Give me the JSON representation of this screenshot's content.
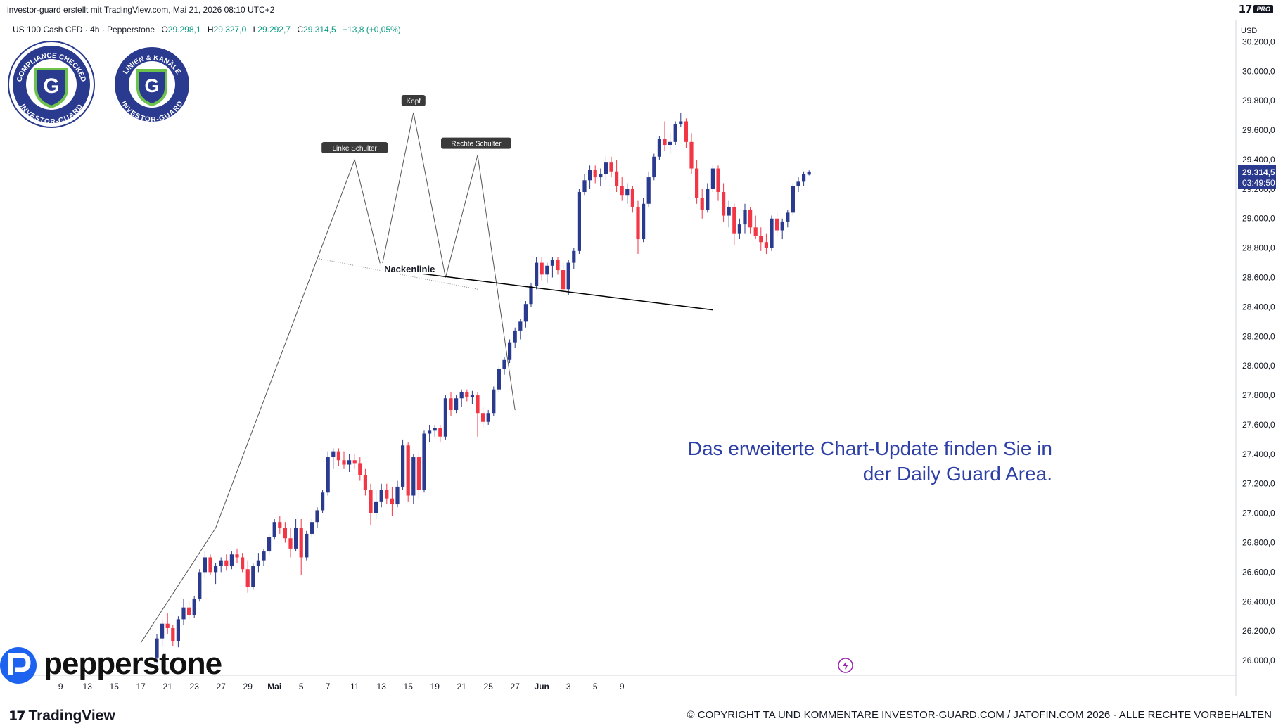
{
  "header": {
    "byline": "investor-guard erstellt mit TradingView.com, Mai 21, 2026 08:10 UTC+2",
    "tv_logo": "17",
    "tv_badge": "PRO"
  },
  "legend": {
    "symbol": "US 100 Cash CFD · 4h · Pepperstone",
    "open_label": "O",
    "open": "29.298,1",
    "high_label": "H",
    "high": "29.327,0",
    "low_label": "L",
    "low": "29.292,7",
    "close_label": "C",
    "close": "29.314,5",
    "change": "+13,8 (+0,05%)"
  },
  "badges": {
    "left_text": "COMPLIANCE CHECKED",
    "left_bottom": "INVESTOR-GUARD",
    "right_text": "LINIEN & KANÄLE",
    "right_bottom": "INVESTOR-GUARD",
    "letter": "G",
    "colors": {
      "ring": "#2a3a8e",
      "shield": "#6cc24a"
    }
  },
  "price_axis": {
    "currency": "USD",
    "last_price": "29.314,5",
    "countdown": "03:49:50"
  },
  "annotations": {
    "left_shoulder": "Linke Schulter",
    "head": "Kopf",
    "right_shoulder": "Rechte Schulter",
    "neckline": "Nackenlinie",
    "note_line1": "Das erweiterte Chart-Update finden Sie in",
    "note_line2": "der Daily Guard Area."
  },
  "branding": {
    "pepperstone": "pepperstone",
    "tradingview": "TradingView",
    "copyright": "© COPYRIGHT TA UND KOMMENTARE INVESTOR-GUARD.COM / JATOFIN.COM 2026 - ALLE RECHTE VORBEHALTEN"
  },
  "chart_data": {
    "type": "candlestick",
    "title": "US 100 Cash CFD · 4h · Pepperstone",
    "xlabel": "",
    "ylabel": "",
    "ylim": [
      25900,
      30350
    ],
    "y_ticks": [
      "30.200,0",
      "30.000,0",
      "29.800,0",
      "29.600,0",
      "29.400,0",
      "29.200,0",
      "29.000,0",
      "28.800,0",
      "28.600,0",
      "28.400,0",
      "28.200,0",
      "28.000,0",
      "27.800,0",
      "27.600,0",
      "27.400,0",
      "27.200,0",
      "27.000,0",
      "26.800,0",
      "26.600,0",
      "26.400,0",
      "26.200,0",
      "26.000,0"
    ],
    "y_tick_values": [
      30200,
      30000,
      29800,
      29600,
      29400,
      29200,
      29000,
      28800,
      28600,
      28400,
      28200,
      28000,
      27800,
      27600,
      27400,
      27200,
      27000,
      26800,
      26600,
      26400,
      26200,
      26000
    ],
    "x_ticks": [
      "9",
      "13",
      "15",
      "17",
      "21",
      "23",
      "27",
      "29",
      "Mai",
      "5",
      "7",
      "11",
      "13",
      "15",
      "19",
      "21",
      "25",
      "27",
      "Jun",
      "3",
      "5",
      "9"
    ],
    "x_tick_index": [
      -18,
      -13,
      -8,
      -3,
      2,
      7,
      12,
      17,
      22,
      27,
      32,
      37,
      42,
      47,
      52,
      57,
      62,
      67,
      72,
      77,
      82,
      87
    ],
    "colors": {
      "up": "#2a3a8e",
      "down": "#f23645",
      "projection": "#555555",
      "neckline": "#000000"
    },
    "candles": [
      [
        26020,
        26180,
        25980,
        26150
      ],
      [
        26150,
        26280,
        26100,
        26250
      ],
      [
        26250,
        26320,
        26180,
        26220
      ],
      [
        26220,
        26240,
        26100,
        26130
      ],
      [
        26130,
        26300,
        26090,
        26280
      ],
      [
        26280,
        26420,
        26240,
        26360
      ],
      [
        26360,
        26400,
        26280,
        26310
      ],
      [
        26310,
        26440,
        26290,
        26420
      ],
      [
        26420,
        26620,
        26400,
        26600
      ],
      [
        26600,
        26740,
        26560,
        26700
      ],
      [
        26700,
        26720,
        26580,
        26600
      ],
      [
        26600,
        26660,
        26520,
        26640
      ],
      [
        26640,
        26700,
        26600,
        26680
      ],
      [
        26680,
        26720,
        26610,
        26640
      ],
      [
        26640,
        26740,
        26620,
        26720
      ],
      [
        26720,
        26760,
        26660,
        26700
      ],
      [
        26700,
        26730,
        26600,
        26620
      ],
      [
        26620,
        26680,
        26460,
        26500
      ],
      [
        26500,
        26660,
        26480,
        26640
      ],
      [
        26640,
        26730,
        26600,
        26680
      ],
      [
        26680,
        26760,
        26640,
        26740
      ],
      [
        26740,
        26860,
        26720,
        26840
      ],
      [
        26840,
        26960,
        26820,
        26940
      ],
      [
        26940,
        26980,
        26860,
        26900
      ],
      [
        26900,
        26940,
        26800,
        26830
      ],
      [
        26830,
        26900,
        26700,
        26760
      ],
      [
        26760,
        26960,
        26740,
        26900
      ],
      [
        26900,
        26960,
        26580,
        26700
      ],
      [
        26700,
        26880,
        26680,
        26860
      ],
      [
        26860,
        26960,
        26840,
        26940
      ],
      [
        26940,
        27040,
        26900,
        27020
      ],
      [
        27020,
        27160,
        27000,
        27140
      ],
      [
        27140,
        27420,
        27120,
        27380
      ],
      [
        27380,
        27440,
        27300,
        27420
      ],
      [
        27420,
        27440,
        27320,
        27360
      ],
      [
        27360,
        27420,
        27300,
        27330
      ],
      [
        27330,
        27400,
        27280,
        27360
      ],
      [
        27360,
        27400,
        27300,
        27340
      ],
      [
        27340,
        27380,
        27220,
        27260
      ],
      [
        27260,
        27300,
        27120,
        27160
      ],
      [
        27160,
        27200,
        26920,
        27000
      ],
      [
        27000,
        27160,
        26960,
        27080
      ],
      [
        27080,
        27200,
        27040,
        27160
      ],
      [
        27160,
        27200,
        27060,
        27100
      ],
      [
        27100,
        27180,
        26980,
        27060
      ],
      [
        27060,
        27220,
        27040,
        27180
      ],
      [
        27180,
        27500,
        27160,
        27460
      ],
      [
        27460,
        27480,
        27080,
        27120
      ],
      [
        27120,
        27400,
        27060,
        27380
      ],
      [
        27380,
        27420,
        27100,
        27160
      ],
      [
        27160,
        27560,
        27140,
        27540
      ],
      [
        27540,
        27600,
        27480,
        27560
      ],
      [
        27560,
        27600,
        27520,
        27580
      ],
      [
        27580,
        27600,
        27480,
        27520
      ],
      [
        27520,
        27800,
        27500,
        27780
      ],
      [
        27780,
        27820,
        27660,
        27700
      ],
      [
        27700,
        27800,
        27680,
        27780
      ],
      [
        27780,
        27840,
        27720,
        27820
      ],
      [
        27820,
        27840,
        27760,
        27790
      ],
      [
        27790,
        27830,
        27740,
        27800
      ],
      [
        27800,
        27820,
        27520,
        27680
      ],
      [
        27680,
        27720,
        27580,
        27620
      ],
      [
        27620,
        27700,
        27600,
        27680
      ],
      [
        27680,
        27860,
        27660,
        27840
      ],
      [
        27840,
        28000,
        27820,
        27980
      ],
      [
        27980,
        28060,
        27940,
        28040
      ],
      [
        28040,
        28180,
        28020,
        28160
      ],
      [
        28160,
        28260,
        28120,
        28240
      ],
      [
        28240,
        28320,
        28180,
        28300
      ],
      [
        28300,
        28440,
        28260,
        28420
      ],
      [
        28420,
        28560,
        28400,
        28540
      ],
      [
        28540,
        28740,
        28520,
        28700
      ],
      [
        28700,
        28740,
        28580,
        28620
      ],
      [
        28620,
        28700,
        28560,
        28680
      ],
      [
        28680,
        28740,
        28600,
        28720
      ],
      [
        28720,
        28740,
        28620,
        28650
      ],
      [
        28650,
        28700,
        28480,
        28520
      ],
      [
        28520,
        28720,
        28480,
        28700
      ],
      [
        28700,
        28800,
        28660,
        28780
      ],
      [
        28780,
        29200,
        28760,
        29180
      ],
      [
        29180,
        29300,
        29160,
        29260
      ],
      [
        29260,
        29360,
        29200,
        29330
      ],
      [
        29330,
        29360,
        29240,
        29280
      ],
      [
        29280,
        29340,
        29220,
        29300
      ],
      [
        29300,
        29420,
        29260,
        29380
      ],
      [
        29380,
        29420,
        29280,
        29320
      ],
      [
        29320,
        29400,
        29180,
        29220
      ],
      [
        29220,
        29280,
        29120,
        29160
      ],
      [
        29160,
        29240,
        29100,
        29200
      ],
      [
        29200,
        29220,
        29040,
        29080
      ],
      [
        29080,
        29120,
        28760,
        28860
      ],
      [
        28860,
        29140,
        28840,
        29100
      ],
      [
        29100,
        29320,
        29080,
        29280
      ],
      [
        29280,
        29440,
        29260,
        29420
      ],
      [
        29420,
        29560,
        29400,
        29540
      ],
      [
        29540,
        29660,
        29460,
        29500
      ],
      [
        29500,
        29580,
        29440,
        29520
      ],
      [
        29520,
        29660,
        29500,
        29640
      ],
      [
        29640,
        29720,
        29620,
        29660
      ],
      [
        29660,
        29680,
        29480,
        29520
      ],
      [
        29520,
        29580,
        29300,
        29340
      ],
      [
        29340,
        29400,
        29100,
        29140
      ],
      [
        29140,
        29200,
        29000,
        29060
      ],
      [
        29060,
        29240,
        29040,
        29200
      ],
      [
        29200,
        29360,
        29180,
        29340
      ],
      [
        29340,
        29360,
        29120,
        29180
      ],
      [
        29180,
        29240,
        28980,
        29020
      ],
      [
        29020,
        29120,
        28940,
        29080
      ],
      [
        29080,
        29100,
        28820,
        28900
      ],
      [
        28900,
        29000,
        28860,
        28960
      ],
      [
        28960,
        29100,
        28900,
        29060
      ],
      [
        29060,
        29080,
        28900,
        28940
      ],
      [
        28940,
        29020,
        28860,
        28880
      ],
      [
        28880,
        28940,
        28780,
        28840
      ],
      [
        28840,
        28900,
        28760,
        28800
      ],
      [
        28800,
        29020,
        28780,
        29000
      ],
      [
        29000,
        29040,
        28880,
        28920
      ],
      [
        28920,
        29000,
        28860,
        28980
      ],
      [
        28980,
        29060,
        28940,
        29040
      ],
      [
        29040,
        29240,
        29020,
        29220
      ],
      [
        29220,
        29280,
        29180,
        29250
      ],
      [
        29250,
        29320,
        29220,
        29300
      ],
      [
        29298.1,
        29327,
        29292.7,
        29314.5
      ]
    ],
    "pattern_points": [
      [
        -3,
        26120
      ],
      [
        11,
        26900
      ],
      [
        37,
        29400
      ],
      [
        42,
        28660
      ],
      [
        48,
        29720
      ],
      [
        54,
        28600
      ],
      [
        60,
        29430
      ],
      [
        67,
        27700
      ]
    ],
    "neckline": [
      [
        42,
        28660
      ],
      [
        104,
        28380
      ]
    ],
    "neckline_dotted": [
      [
        30,
        28730
      ],
      [
        60,
        28520
      ]
    ]
  }
}
